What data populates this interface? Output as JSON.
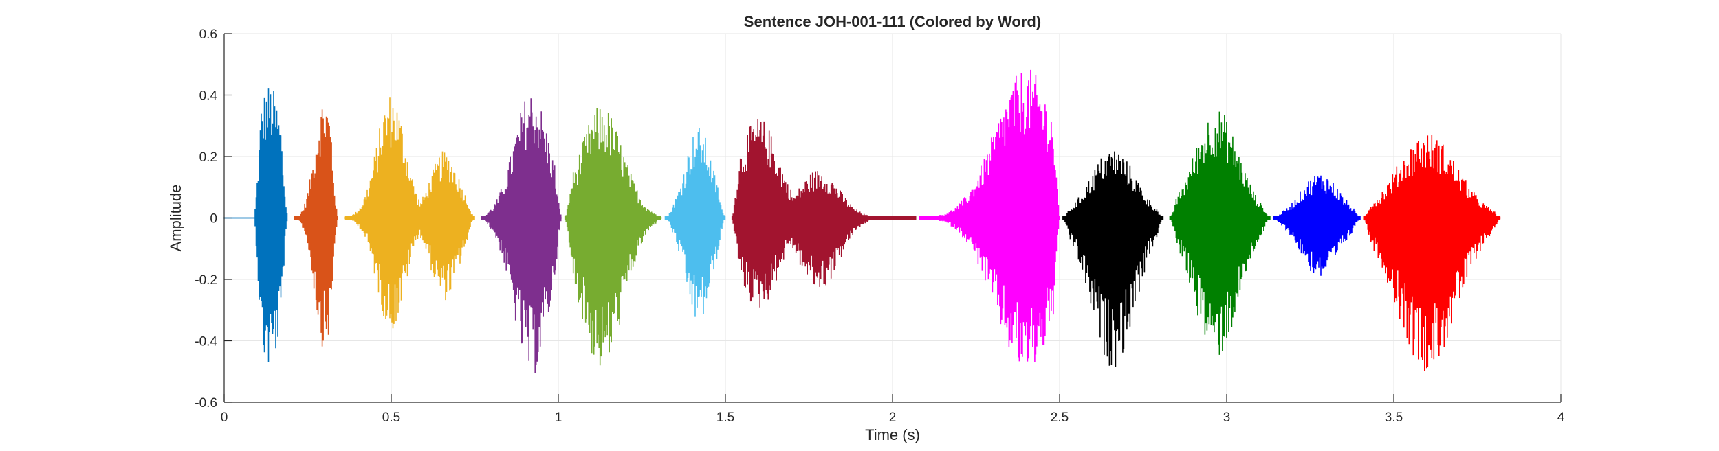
{
  "chart_data": {
    "type": "line",
    "title": "Sentence JOH-001-111 (Colored by Word)",
    "xlabel": "Time (s)",
    "ylabel": "Amplitude",
    "xlim": [
      0,
      4
    ],
    "ylim": [
      -0.6,
      0.6
    ],
    "xticks": [
      0,
      0.5,
      1,
      1.5,
      2,
      2.5,
      3,
      3.5,
      4
    ],
    "yticks": [
      -0.6,
      -0.4,
      -0.2,
      0,
      0.2,
      0.4,
      0.6
    ],
    "grid": true,
    "legend": "none",
    "series": [
      {
        "color": "#0072BD",
        "x_range": [
          0.0,
          0.19
        ],
        "onset": 0.09,
        "peaks": [
          {
            "t": 0.135,
            "max": 0.44,
            "min": -0.5
          }
        ]
      },
      {
        "color": "#D95319",
        "x_range": [
          0.21,
          0.34
        ],
        "peaks": [
          {
            "t": 0.3,
            "max": 0.4,
            "min": -0.43
          }
        ]
      },
      {
        "color": "#EDB120",
        "x_range": [
          0.36,
          0.75
        ],
        "peaks": [
          {
            "t": 0.5,
            "max": 0.41,
            "min": -0.37
          },
          {
            "t": 0.66,
            "max": 0.22,
            "min": -0.27
          }
        ]
      },
      {
        "color": "#7E2F8E",
        "x_range": [
          0.77,
          1.01
        ],
        "peaks": [
          {
            "t": 0.92,
            "max": 0.42,
            "min": -0.52
          }
        ]
      },
      {
        "color": "#77AC30",
        "x_range": [
          1.02,
          1.31
        ],
        "peaks": [
          {
            "t": 1.13,
            "max": 0.37,
            "min": -0.5
          }
        ]
      },
      {
        "color": "#4DBEEE",
        "x_range": [
          1.32,
          1.5
        ],
        "peaks": [
          {
            "t": 1.42,
            "max": 0.3,
            "min": -0.35
          }
        ]
      },
      {
        "color": "#A2142F",
        "x_range": [
          1.52,
          2.07
        ],
        "peaks": [
          {
            "t": 1.6,
            "max": 0.33,
            "min": -0.3
          },
          {
            "t": 1.78,
            "max": 0.16,
            "min": -0.24
          }
        ]
      },
      {
        "color": "#FF00FF",
        "x_range": [
          2.08,
          2.5
        ],
        "peaks": [
          {
            "t": 2.4,
            "max": 0.49,
            "min": -0.51
          }
        ]
      },
      {
        "color": "#000000",
        "x_range": [
          2.51,
          2.81
        ],
        "peaks": [
          {
            "t": 2.66,
            "max": 0.23,
            "min": -0.49
          }
        ]
      },
      {
        "color": "#008000",
        "x_range": [
          2.83,
          3.13
        ],
        "peaks": [
          {
            "t": 2.97,
            "max": 0.36,
            "min": -0.46
          }
        ]
      },
      {
        "color": "#0000FF",
        "x_range": [
          3.14,
          3.4
        ],
        "peaks": [
          {
            "t": 3.28,
            "max": 0.15,
            "min": -0.2
          }
        ]
      },
      {
        "color": "#FF0000",
        "x_range": [
          3.41,
          3.82
        ],
        "peaks": [
          {
            "t": 3.6,
            "max": 0.28,
            "min": -0.5
          }
        ]
      }
    ]
  }
}
